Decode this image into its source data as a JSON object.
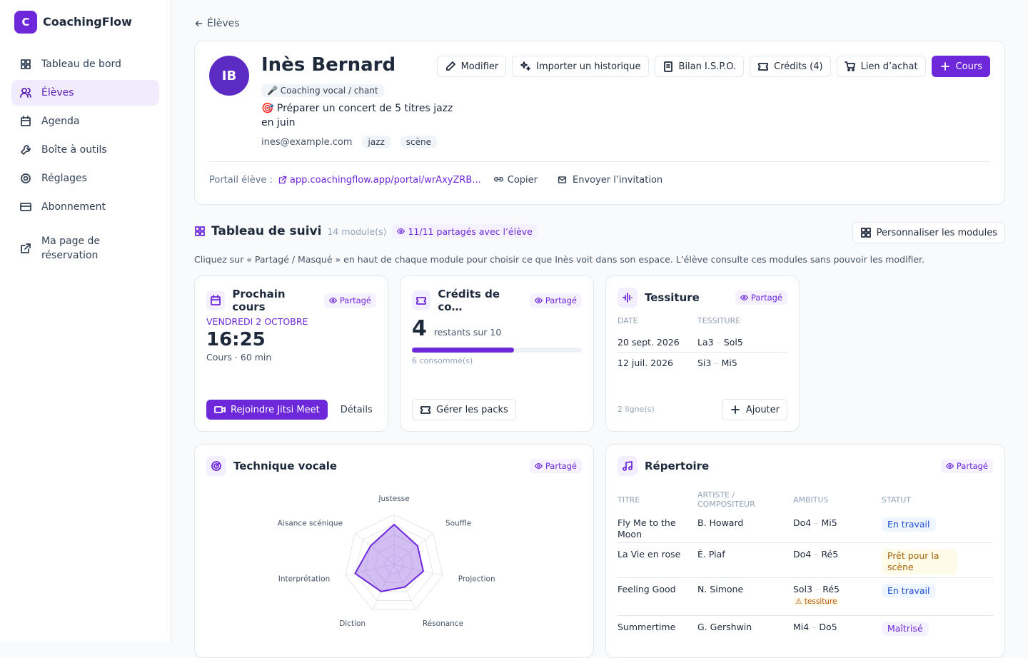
{
  "sidebar": {
    "logo": "C",
    "brand": "CoachingFlow",
    "nav": [
      "Tableau de bord",
      "Élèves",
      "Agenda",
      "Boîte à outils",
      "Réglages",
      "Abonnement",
      "Ma page de réservation"
    ]
  },
  "back": "Élèves",
  "student": {
    "initials": "IB",
    "name": "Inès Bernard",
    "tag": "🎤 Coaching vocal / chant",
    "goal": "🎯 Préparer un concert de 5 titres jazz en juin",
    "email": "ines@example.com",
    "tags": [
      "jazz",
      "scène"
    ],
    "actions": [
      "Modifier",
      "Importer un historique",
      "Bilan I.S.P.O.",
      "Crédits (4)",
      "Lien d’achat",
      "Cours"
    ],
    "portal_label": "Portail élève :",
    "portal_url": "app.coachingflow.app/portal/wrAxyZRB...",
    "copy": "Copier",
    "invite": "Envoyer l’invitation"
  },
  "tracking": {
    "title": "Tableau de suivi",
    "count": "14 module(s)",
    "shared": "11/11 partagés avec l’élève",
    "customize": "Personnaliser les modules",
    "hint": "Cliquez sur « Partagé / Masqué » en haut de chaque module pour choisir ce que Inès voit dans son espace. L’élève consulte ces modules sans pouvoir les modifier.",
    "badge": "Partagé"
  },
  "next_lesson": {
    "title": "Prochain cours",
    "date": "VENDREDI 2 OCTOBRE",
    "time": "16:25",
    "meta": "Cours · 60 min",
    "join": "Rejoindre Jitsi Meet",
    "details": "Détails"
  },
  "credits": {
    "title": "Crédits de co…",
    "remaining": 4,
    "remaining_label": "restants sur 10",
    "consumed": "6 consommé(s)",
    "manage": "Gérer les packs"
  },
  "range": {
    "title": "Tessiture",
    "headers": [
      "DATE",
      "TESSITURE"
    ],
    "rows": [
      [
        "20 sept. 2026",
        "La3",
        "Sol5"
      ],
      [
        "12 juil. 2026",
        "Si3",
        "Mi5"
      ]
    ],
    "footer": "2 ligne(s)",
    "add": "Ajouter"
  },
  "technique": {
    "title": "Technique vocale",
    "chart_data": {
      "type": "radar",
      "categories": [
        "Justesse",
        "Souffle",
        "Projection",
        "Résonance",
        "Diction",
        "Interprétation",
        "Aisance scénique"
      ],
      "values": [
        8,
        6,
        6,
        5,
        6,
        8,
        6
      ],
      "rlim": [
        0,
        10
      ],
      "color": "#6d28d9"
    }
  },
  "repertoire": {
    "title": "Répertoire",
    "headers": [
      "TITRE",
      "ARTISTE / COMPOSITEUR",
      "AMBITUS",
      "STATUT"
    ],
    "rows": [
      [
        "Fly Me to the Moon",
        "B. Howard",
        "Do4",
        "Mi5",
        "En travail"
      ],
      [
        "La Vie en rose",
        "É. Piaf",
        "Do4",
        "Ré5",
        "Prêt pour la scène"
      ],
      [
        "Feeling Good",
        "N. Simone",
        "Sol3",
        "Ré5",
        "En travail"
      ],
      [
        "Summertime",
        "G. Gershwin",
        "Mi4",
        "Do5",
        "Maîtrisé"
      ]
    ],
    "warning": "tessiture"
  }
}
